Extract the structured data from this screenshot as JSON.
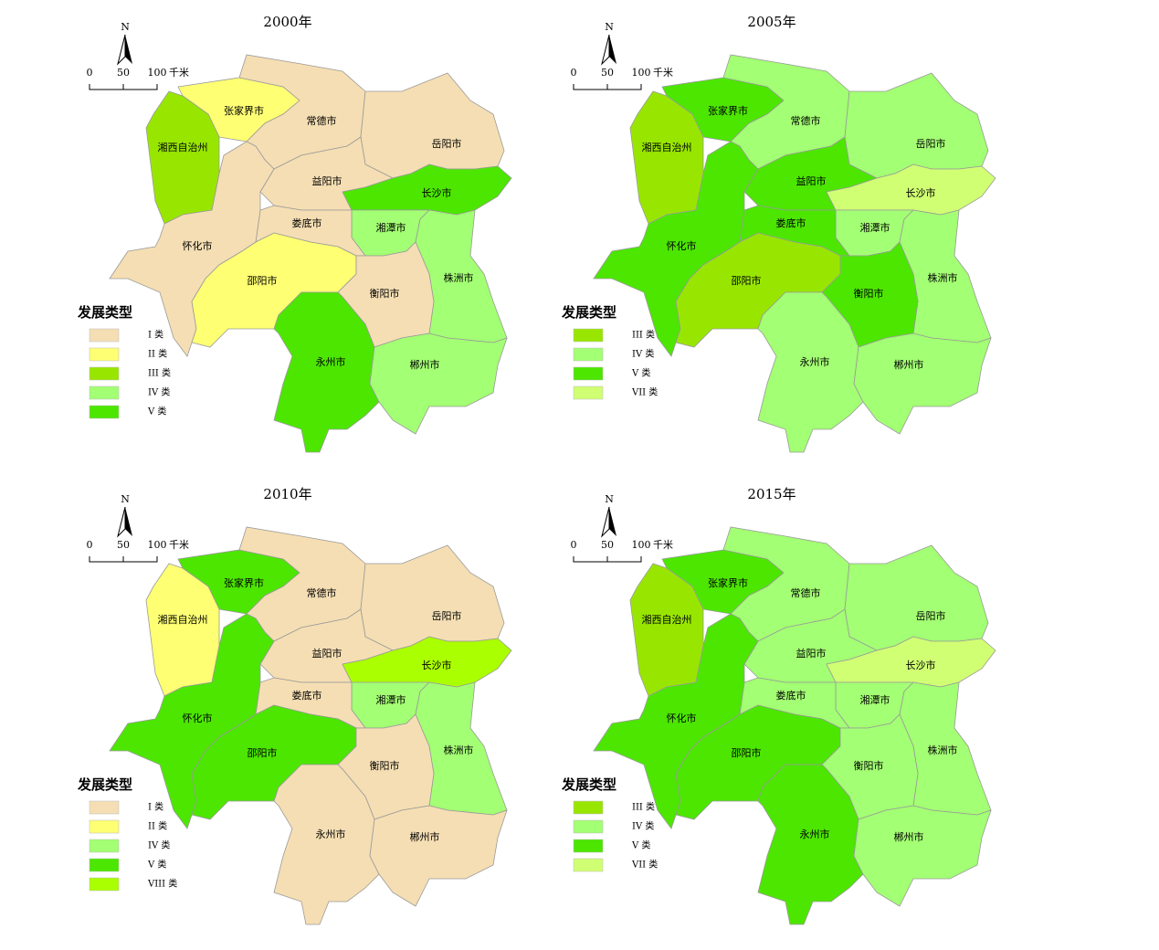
{
  "north": "N",
  "scale_bar": {
    "ticks": [
      "0",
      "50",
      "100"
    ],
    "unit": "千米"
  },
  "panels": [
    {
      "title": "2000年",
      "legend": {
        "title": "发展类型",
        "items": [
          {
            "label": "I 类",
            "color": "#f5deb3"
          },
          {
            "label": "II 类",
            "color": "#ffff73"
          },
          {
            "label": "III 类",
            "color": "#98e600"
          },
          {
            "label": "IV 类",
            "color": "#a3ff73"
          },
          {
            "label": "V 类",
            "color": "#4ce600"
          }
        ]
      },
      "regions": [
        {
          "name": "张家界市",
          "color": "#ffff73"
        },
        {
          "name": "湘西自治州",
          "color": "#98e600"
        },
        {
          "name": "常德市",
          "color": "#f5deb3"
        },
        {
          "name": "岳阳市",
          "color": "#f5deb3"
        },
        {
          "name": "益阳市",
          "color": "#f5deb3"
        },
        {
          "name": "长沙市",
          "color": "#4ce600"
        },
        {
          "name": "湘潭市",
          "color": "#a3ff73"
        },
        {
          "name": "株洲市",
          "color": "#a3ff73"
        },
        {
          "name": "娄底市",
          "color": "#f5deb3"
        },
        {
          "name": "怀化市",
          "color": "#f5deb3"
        },
        {
          "name": "邵阳市",
          "color": "#ffff73"
        },
        {
          "name": "衡阳市",
          "color": "#f5deb3"
        },
        {
          "name": "永州市",
          "color": "#4ce600"
        },
        {
          "name": "郴州市",
          "color": "#a3ff73"
        }
      ]
    },
    {
      "title": "2005年",
      "legend": {
        "title": "发展类型",
        "items": [
          {
            "label": "III 类",
            "color": "#98e600"
          },
          {
            "label": "IV 类",
            "color": "#a3ff73"
          },
          {
            "label": "V 类",
            "color": "#4ce600"
          },
          {
            "label": "VII 类",
            "color": "#d1ff73"
          }
        ]
      },
      "regions": [
        {
          "name": "张家界市",
          "color": "#4ce600"
        },
        {
          "name": "湘西自治州",
          "color": "#98e600"
        },
        {
          "name": "常德市",
          "color": "#a3ff73"
        },
        {
          "name": "岳阳市",
          "color": "#a3ff73"
        },
        {
          "name": "益阳市",
          "color": "#4ce600"
        },
        {
          "name": "长沙市",
          "color": "#d1ff73"
        },
        {
          "name": "湘潭市",
          "color": "#a3ff73"
        },
        {
          "name": "株洲市",
          "color": "#a3ff73"
        },
        {
          "name": "娄底市",
          "color": "#4ce600"
        },
        {
          "name": "怀化市",
          "color": "#4ce600"
        },
        {
          "name": "邵阳市",
          "color": "#98e600"
        },
        {
          "name": "衡阳市",
          "color": "#4ce600"
        },
        {
          "name": "永州市",
          "color": "#a3ff73"
        },
        {
          "name": "郴州市",
          "color": "#a3ff73"
        }
      ]
    },
    {
      "title": "2010年",
      "legend": {
        "title": "发展类型",
        "items": [
          {
            "label": "I 类",
            "color": "#f5deb3"
          },
          {
            "label": "II 类",
            "color": "#ffff73"
          },
          {
            "label": "IV 类",
            "color": "#a3ff73"
          },
          {
            "label": "V 类",
            "color": "#4ce600"
          },
          {
            "label": "VIII 类",
            "color": "#aaff00"
          }
        ]
      },
      "regions": [
        {
          "name": "张家界市",
          "color": "#4ce600"
        },
        {
          "name": "湘西自治州",
          "color": "#ffff73"
        },
        {
          "name": "常德市",
          "color": "#f5deb3"
        },
        {
          "name": "岳阳市",
          "color": "#f5deb3"
        },
        {
          "name": "益阳市",
          "color": "#f5deb3"
        },
        {
          "name": "长沙市",
          "color": "#aaff00"
        },
        {
          "name": "湘潭市",
          "color": "#a3ff73"
        },
        {
          "name": "株洲市",
          "color": "#a3ff73"
        },
        {
          "name": "娄底市",
          "color": "#f5deb3"
        },
        {
          "name": "怀化市",
          "color": "#4ce600"
        },
        {
          "name": "邵阳市",
          "color": "#4ce600"
        },
        {
          "name": "衡阳市",
          "color": "#f5deb3"
        },
        {
          "name": "永州市",
          "color": "#f5deb3"
        },
        {
          "name": "郴州市",
          "color": "#f5deb3"
        }
      ]
    },
    {
      "title": "2015年",
      "legend": {
        "title": "发展类型",
        "items": [
          {
            "label": "III 类",
            "color": "#98e600"
          },
          {
            "label": "IV 类",
            "color": "#a3ff73"
          },
          {
            "label": "V 类",
            "color": "#4ce600"
          },
          {
            "label": "VII 类",
            "color": "#d1ff73"
          }
        ]
      },
      "regions": [
        {
          "name": "张家界市",
          "color": "#4ce600"
        },
        {
          "name": "湘西自治州",
          "color": "#98e600"
        },
        {
          "name": "常德市",
          "color": "#a3ff73"
        },
        {
          "name": "岳阳市",
          "color": "#a3ff73"
        },
        {
          "name": "益阳市",
          "color": "#a3ff73"
        },
        {
          "name": "长沙市",
          "color": "#d1ff73"
        },
        {
          "name": "湘潭市",
          "color": "#a3ff73"
        },
        {
          "name": "株洲市",
          "color": "#a3ff73"
        },
        {
          "name": "娄底市",
          "color": "#a3ff73"
        },
        {
          "name": "怀化市",
          "color": "#4ce600"
        },
        {
          "name": "邵阳市",
          "color": "#4ce600"
        },
        {
          "name": "衡阳市",
          "color": "#a3ff73"
        },
        {
          "name": "永州市",
          "color": "#4ce600"
        },
        {
          "name": "郴州市",
          "color": "#a3ff73"
        }
      ]
    }
  ]
}
